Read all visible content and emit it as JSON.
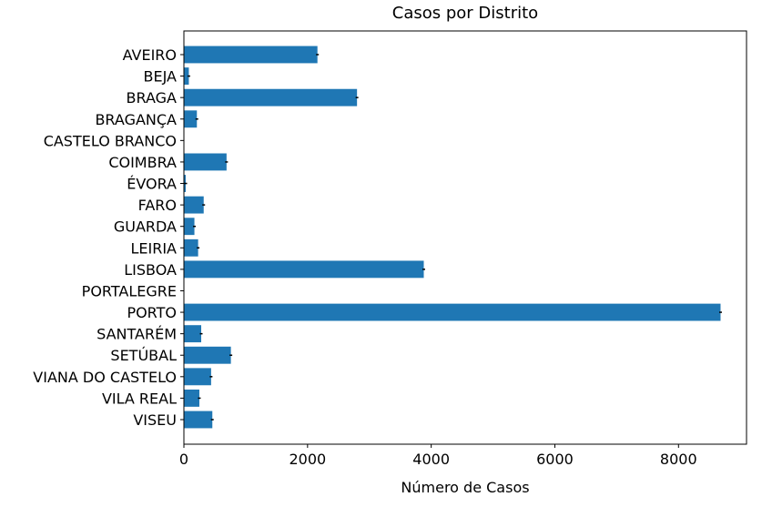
{
  "chart_data": {
    "type": "bar",
    "orientation": "horizontal",
    "title": "Casos por Distrito",
    "xlabel": "Número de Casos",
    "ylabel": "",
    "xlim": [
      0,
      9100
    ],
    "xticks": [
      0,
      2000,
      4000,
      6000,
      8000
    ],
    "grid": false,
    "bar_color": "#1f77b4",
    "error_bar_color": "#000000",
    "categories": [
      "AVEIRO",
      "BEJA",
      "BRAGA",
      "BRAGANÇA",
      "CASTELO BRANCO",
      "COIMBRA",
      "ÉVORA",
      "FARO",
      "GUARDA",
      "LEIRIA",
      "LISBOA",
      "PORTALEGRE",
      "PORTO",
      "SANTARÉM",
      "SETÚBAL",
      "VIANA DO CASTELO",
      "VILA REAL",
      "VISEU"
    ],
    "values": [
      2160,
      80,
      2800,
      210,
      0,
      690,
      30,
      320,
      170,
      230,
      3880,
      0,
      8680,
      280,
      760,
      440,
      250,
      460
    ]
  }
}
